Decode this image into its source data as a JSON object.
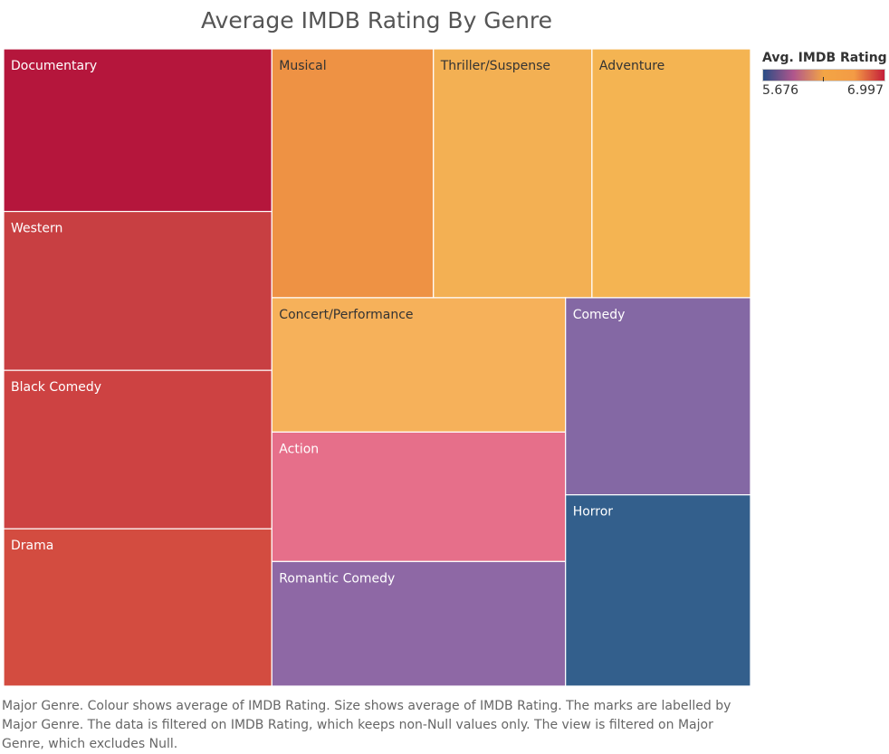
{
  "chart_data": {
    "type": "treemap",
    "title": "Average IMDB Rating By Genre",
    "size_measure": "Avg. IMDB Rating",
    "color_measure": "Avg. IMDB Rating",
    "color_range": [
      5.676,
      6.997
    ],
    "items": [
      {
        "label": "Documentary",
        "value": 6.997,
        "color": "#b5163c",
        "text_color": "#ffffff"
      },
      {
        "label": "Western",
        "value": 6.84,
        "color": "#c83f42",
        "text_color": "#ffffff"
      },
      {
        "label": "Black Comedy",
        "value": 6.82,
        "color": "#cd4242",
        "text_color": "#ffffff"
      },
      {
        "label": "Drama",
        "value": 6.77,
        "color": "#d34c40",
        "text_color": "#ffffff"
      },
      {
        "label": "Musical",
        "value": 6.45,
        "color": "#ee9244",
        "text_color": "#333333"
      },
      {
        "label": "Thriller/Suspense",
        "value": 6.33,
        "color": "#f3b053",
        "text_color": "#333333"
      },
      {
        "label": "Adventure",
        "value": 6.33,
        "color": "#f4b452",
        "text_color": "#333333"
      },
      {
        "label": "Concert/Performance",
        "value": 6.33,
        "color": "#f6b15a",
        "text_color": "#333333"
      },
      {
        "label": "Action",
        "value": 6.1,
        "color": "#e66f8a",
        "text_color": "#ffffff"
      },
      {
        "label": "Romantic Comedy",
        "value": 5.87,
        "color": "#8e68a5",
        "text_color": "#ffffff"
      },
      {
        "label": "Comedy",
        "value": 5.85,
        "color": "#8468a4",
        "text_color": "#ffffff"
      },
      {
        "label": "Horror",
        "value": 5.676,
        "color": "#335f8c",
        "text_color": "#ffffff"
      }
    ]
  },
  "legend": {
    "title": "Avg. IMDB Rating",
    "min_label": "5.676",
    "max_label": "6.997",
    "gradient": [
      "#2a4d85",
      "#b0568c",
      "#f3a545",
      "#f39b45",
      "#c41e3a"
    ]
  },
  "caption": "Major Genre.  Colour shows average of IMDB Rating.  Size shows average of IMDB Rating.  The marks are labelled by Major Genre. The data is filtered on IMDB Rating, which keeps non-Null values only. The view is filtered on Major Genre, which excludes Null."
}
